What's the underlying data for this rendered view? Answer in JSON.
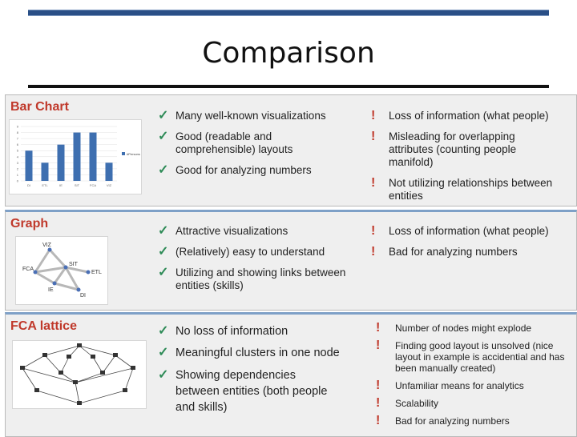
{
  "slide": {
    "title": "Comparison",
    "sections": [
      {
        "heading": "Bar Chart",
        "pros": [
          "Many well-known visualizations",
          "Good (readable and comprehensible) layouts",
          "Good for analyzing numbers"
        ],
        "cons": [
          "Loss of information (what people)",
          "Misleading for overlapping attributes (counting people manifold)",
          "Not utilizing relationships between entities"
        ]
      },
      {
        "heading": "Graph",
        "pros": [
          "Attractive visualizations",
          "(Relatively) easy to understand",
          "Utilizing and showing links between entities (skills)"
        ],
        "cons": [
          "Loss of information (what people)",
          "Bad for analyzing numbers"
        ],
        "graph_labels": [
          "VIZ",
          "SIT",
          "FCA",
          "ETL",
          "IE",
          "DI"
        ]
      },
      {
        "heading": "FCA lattice",
        "pros": [
          "No loss of information",
          "Meaningful clusters in one node",
          "Showing dependencies between entities (both people and skills)"
        ],
        "cons": [
          "Number of nodes might explode",
          "Finding good layout is unsolved (nice layout in example is accidential and has been manually created)",
          "Unfamiliar means for analytics",
          "Scalability",
          "Bad for analyzing numbers"
        ]
      }
    ]
  },
  "icons": {
    "pro": "green-check-icon",
    "con": "red-exclamation-icon"
  },
  "colors": {
    "accent_bar": "#2a4f86",
    "heading": "#c0392b",
    "pro": "#2e8b57",
    "con": "#c0392b",
    "bars": "#3e6fb0"
  },
  "mini_chart": {
    "type": "bar",
    "categories": [
      "DI",
      "ETL",
      "IE",
      "SIT",
      "FCA",
      "VIZ"
    ],
    "values": [
      5,
      3,
      6,
      8,
      8,
      3
    ],
    "ylim": [
      0,
      9
    ],
    "yticks": [
      0,
      1,
      2,
      3,
      4,
      5,
      6,
      7,
      8,
      9
    ],
    "legend": "#Persons"
  }
}
